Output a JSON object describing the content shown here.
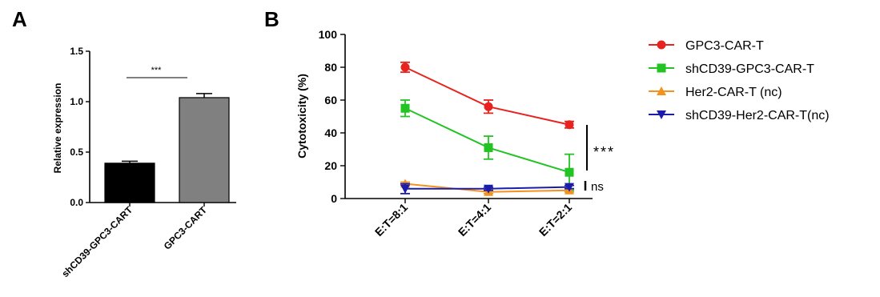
{
  "panels": {
    "a": "A",
    "b": "B"
  },
  "chart_data": [
    {
      "type": "bar",
      "panel": "A",
      "title": "",
      "xlabel": "",
      "ylabel": "Relative expression",
      "ylim": [
        0,
        1.5
      ],
      "yticks": [
        0.0,
        0.5,
        1.0,
        1.5
      ],
      "ytick_labels": [
        "0.0",
        "0.5",
        "1.0",
        "1.5"
      ],
      "categories": [
        "shCD39-GPC3-CART",
        "GPC3-CART"
      ],
      "values": [
        0.39,
        1.04
      ],
      "errors": [
        0.02,
        0.04
      ],
      "bar_colors": [
        "#000000",
        "#808080"
      ],
      "significance": "***",
      "grid": false
    },
    {
      "type": "line",
      "panel": "B",
      "title": "",
      "xlabel": "",
      "ylabel": "Cytotoxicity (%)",
      "ylim": [
        0,
        100
      ],
      "yticks": [
        0,
        20,
        40,
        60,
        80,
        100
      ],
      "ytick_labels": [
        "0",
        "20",
        "40",
        "60",
        "80",
        "100"
      ],
      "categories": [
        "E:T=8:1",
        "E:T=4:1",
        "E:T=2:1"
      ],
      "legend_position": "right",
      "grid": false,
      "series": [
        {
          "name": "GPC3-CAR-T",
          "marker": "circle",
          "color": "#e8231f",
          "values": [
            80,
            56,
            45
          ],
          "errors": [
            3,
            4,
            2
          ]
        },
        {
          "name": "shCD39-GPC3-CAR-T",
          "marker": "square",
          "color": "#22c322",
          "values": [
            55,
            31,
            16
          ],
          "errors": [
            5,
            7,
            11
          ]
        },
        {
          "name": "Her2-CAR-T (nc)",
          "marker": "triangle-up",
          "color": "#f5921e",
          "values": [
            9,
            4,
            5
          ],
          "errors": [
            1,
            1,
            1
          ]
        },
        {
          "name": "shCD39-Her2-CAR-T(nc)",
          "marker": "triangle-down",
          "color": "#1c1caa",
          "values": [
            6,
            6,
            7
          ],
          "errors": [
            3,
            1,
            1
          ]
        }
      ],
      "significance": [
        {
          "label": "***"
        },
        {
          "label": "ns"
        }
      ]
    }
  ]
}
